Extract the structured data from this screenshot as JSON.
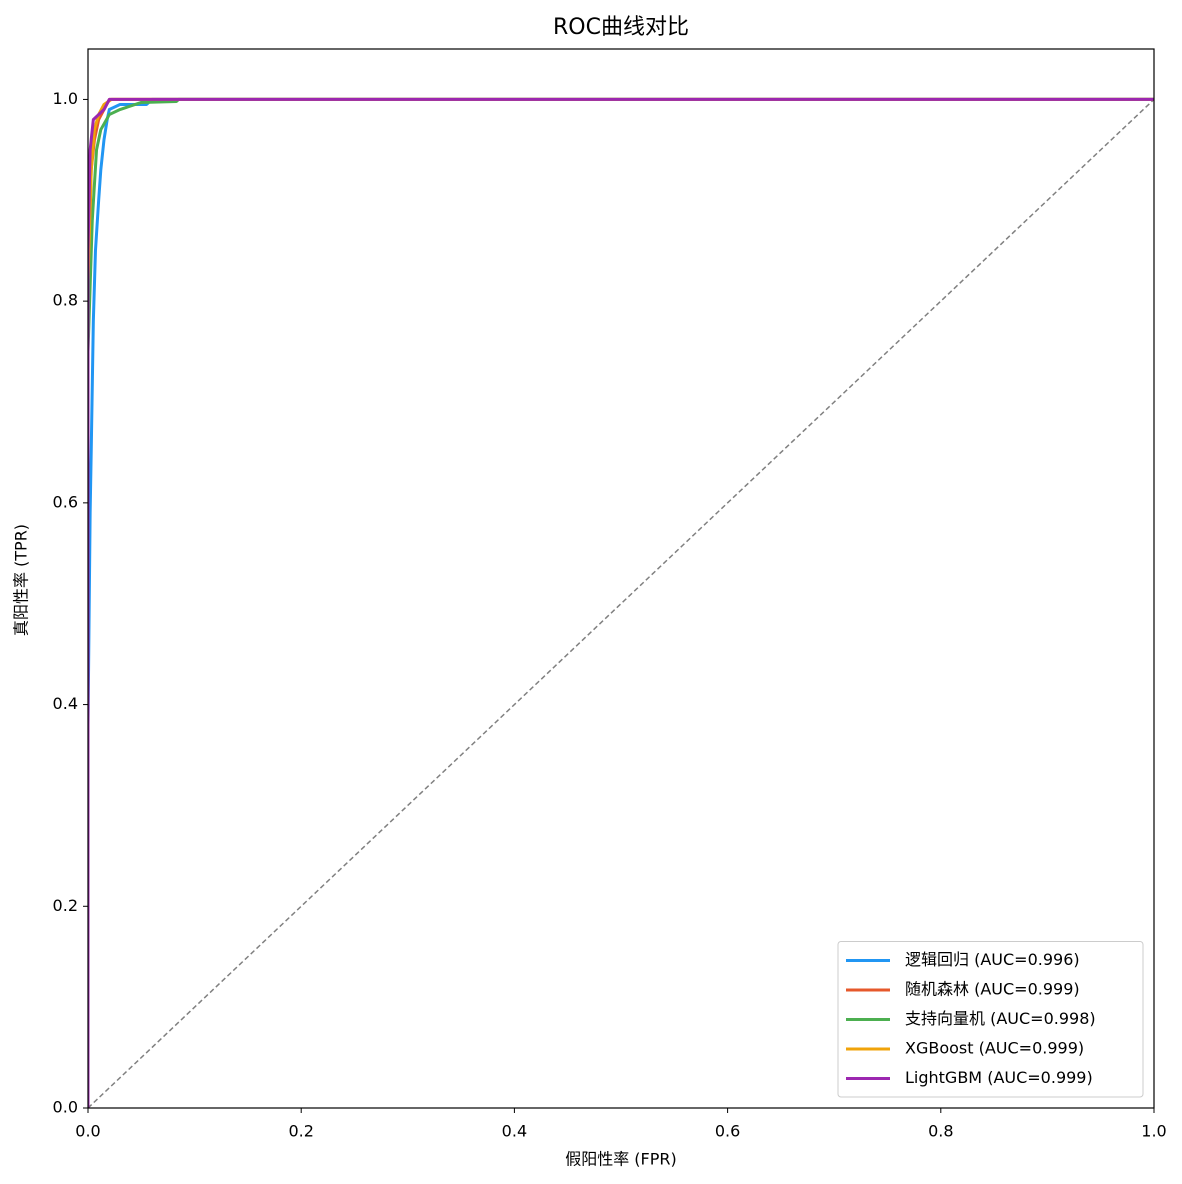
{
  "chart_data": {
    "type": "line",
    "title": "ROC曲线对比",
    "x_label": "假阳性率 (FPR)",
    "y_label": "真阳性率 (TPR)",
    "xlim": [
      0,
      1.0
    ],
    "ylim": [
      0,
      1.05
    ],
    "xticks": [
      {
        "value": 0,
        "label": "0.0"
      },
      0.2,
      0.4,
      0.6,
      0.8,
      {
        "value": 1,
        "label": "1.0"
      }
    ],
    "yticks": [
      {
        "value": 0,
        "label": "0.0"
      },
      0.2,
      0.4,
      0.6,
      0.8,
      {
        "value": 1,
        "label": "1.0"
      }
    ],
    "legend": "lower right",
    "reference_line": {
      "x": [
        0,
        1
      ],
      "values": [
        0,
        1
      ],
      "color": "#808080"
    },
    "series": [
      {
        "name": "逻辑回归 (AUC=0.996)",
        "color": "#2196f3",
        "x": [
          0,
          0,
          0.002,
          0.003,
          0.005,
          0.007,
          0.01,
          0.012,
          0.015,
          0.018,
          0.02,
          0.03,
          0.055,
          0.06,
          1.0
        ],
        "values": [
          0,
          0.38,
          0.59,
          0.65,
          0.78,
          0.85,
          0.9,
          0.93,
          0.96,
          0.98,
          0.99,
          0.995,
          0.995,
          1.0,
          1.0
        ]
      },
      {
        "name": "随机森林 (AUC=0.999)",
        "color": "#e6582b",
        "x": [
          0,
          0,
          0.003,
          0.006,
          0.01,
          0.015,
          0.02,
          1.0
        ],
        "values": [
          0,
          0.8,
          0.93,
          0.96,
          0.98,
          0.99,
          1.0,
          1.0
        ]
      },
      {
        "name": "支持向量机 (AUC=0.998)",
        "color": "#4caf50",
        "x": [
          0,
          0,
          0.004,
          0.008,
          0.012,
          0.02,
          0.03,
          0.05,
          0.083,
          0.085,
          1.0
        ],
        "values": [
          0,
          0.75,
          0.88,
          0.95,
          0.97,
          0.985,
          0.99,
          0.997,
          0.998,
          1.0,
          1.0
        ]
      },
      {
        "name": "XGBoost (AUC=0.999)",
        "color": "#f0a30a",
        "x": [
          0,
          0,
          0.003,
          0.006,
          0.01,
          0.015,
          0.022,
          1.0
        ],
        "values": [
          0,
          0.82,
          0.93,
          0.97,
          0.985,
          0.995,
          1.0,
          1.0
        ]
      },
      {
        "name": "LightGBM (AUC=0.999)",
        "color": "#9c27b0",
        "x": [
          0,
          0,
          0.002,
          0.005,
          0.01,
          0.015,
          0.02,
          1.0
        ],
        "values": [
          0,
          0.85,
          0.95,
          0.98,
          0.985,
          0.99,
          1.0,
          1.0
        ]
      }
    ]
  }
}
